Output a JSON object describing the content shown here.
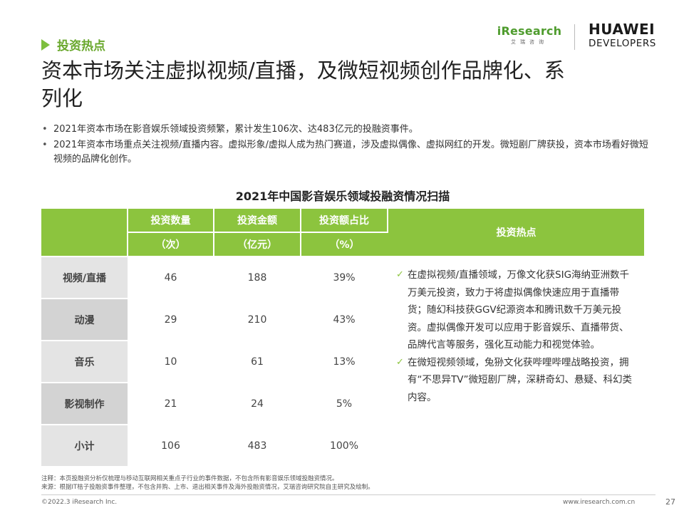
{
  "header": {
    "section_tag": "投资热点",
    "title": "资本市场关注虚拟视频/直播，及微短视频创作品牌化、系列化",
    "logo_iresearch": "iResearch",
    "logo_iresearch_sub": "艾瑞咨询",
    "logo_huawei": "HUAWEI",
    "logo_developers": "DEVELOPERS"
  },
  "bullets": [
    "2021年资本市场在影音娱乐领域投资频繁，累计发生106次、达483亿元的投融资事件。",
    "2021年资本市场重点关注视频/直播内容。虚拟形象/虚拟人成为热门赛道，涉及虚拟偶像、虚拟网红的开发。微短剧厂牌获投，资本市场看好微短视频的品牌化创作。"
  ],
  "table": {
    "title": "2021年中国影音娱乐领域投融资情况扫描",
    "headers": [
      "投资数量",
      "投资金额",
      "投资额占比",
      "投资热点"
    ],
    "units": [
      "（次）",
      "（亿元）",
      "（%）"
    ],
    "rows": [
      {
        "label": "视频/直播",
        "count": "46",
        "amount": "188",
        "share": "39%"
      },
      {
        "label": "动漫",
        "count": "29",
        "amount": "210",
        "share": "43%"
      },
      {
        "label": "音乐",
        "count": "10",
        "amount": "61",
        "share": "13%"
      },
      {
        "label": "影视制作",
        "count": "21",
        "amount": "24",
        "share": "5%"
      },
      {
        "label": "小计",
        "count": "106",
        "amount": "483",
        "share": "100%"
      }
    ],
    "hotspots": [
      "在虚拟视频/直播领域，万像文化获SIG海纳亚洲数千万美元投资，致力于将虚拟偶像快速应用于直播带货；随幻科技获GGV纪源资本和腾讯数千万美元投资。虚拟偶像开发可以应用于影音娱乐、直播带货、品牌代言等服务，强化互动能力和视觉体验。",
      "在微短视频领域，兔狲文化获哔哩哔哩战略投资，拥有“不思异TV”微短剧厂牌，深耕奇幻、悬疑、科幻类内容。"
    ],
    "check_icon": "✓"
  },
  "footer": {
    "note": "注释：本页投融资分析仅梳理与移动互联网相关重点子行业的事件数据，不包含所有影音娱乐领域投融资情况。",
    "source": "来源：根据IT桔子投融资事件整理，不包含并购、上市、退出相关事件及海外投融资情况，艾瑞咨询研究院自主研究及绘制。",
    "copyright": "©2022.3 iResearch Inc.",
    "website": "www.iresearch.com.cn",
    "page_number": "27"
  },
  "colors": {
    "accent_green": "#8cc43e",
    "tag_green": "#6aa82d",
    "label_gray": "#e4e4e4",
    "label_gray_alt": "#d3d3d3"
  }
}
